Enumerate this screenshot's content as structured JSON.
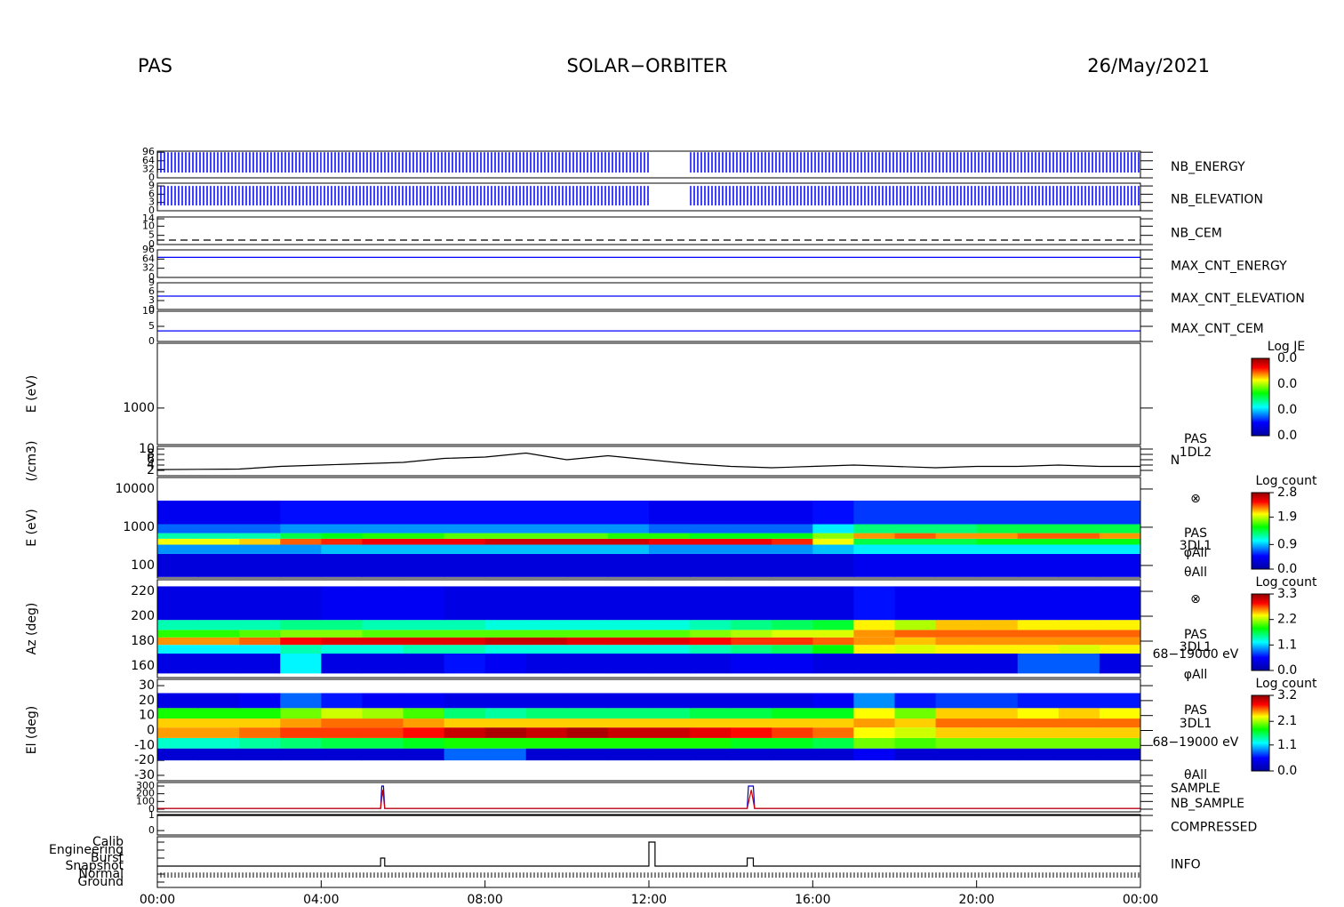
{
  "header": {
    "left": "PAS",
    "center": "SOLAR−ORBITER",
    "right": "26/May/2021"
  },
  "chart_data": [
    {
      "type": "stripes",
      "label": "NB_ENERGY",
      "color": "#0000ff",
      "ylim": [
        0,
        100
      ],
      "yticks": [
        0,
        32,
        64,
        96
      ],
      "x": [
        0,
        1,
        2,
        3,
        4,
        5,
        6,
        7,
        8,
        9,
        10,
        11,
        12,
        13,
        14,
        15,
        16,
        17,
        18,
        19,
        20,
        21,
        22,
        23
      ],
      "values": [
        96,
        96,
        96,
        96,
        96,
        96,
        96,
        96,
        96,
        96,
        96,
        96,
        null,
        96,
        96,
        96,
        96,
        96,
        96,
        96,
        96,
        96,
        96,
        96
      ]
    },
    {
      "type": "stripes",
      "label": "NB_ELEVATION",
      "color": "#0000ff",
      "ylim": [
        0,
        10
      ],
      "yticks": [
        0,
        3,
        6,
        9
      ],
      "x": [
        0,
        1,
        2,
        3,
        4,
        5,
        6,
        7,
        8,
        9,
        10,
        11,
        12,
        13,
        14,
        15,
        16,
        17,
        18,
        19,
        20,
        21,
        22,
        23
      ],
      "values": [
        9,
        9,
        9,
        9,
        9,
        9,
        9,
        9,
        9,
        9,
        9,
        9,
        null,
        9,
        9,
        9,
        9,
        9,
        9,
        9,
        9,
        9,
        9,
        9
      ]
    },
    {
      "type": "line",
      "label": "NB_CEM",
      "color": "#000000",
      "line_style": "dashed",
      "ylim": [
        0,
        15
      ],
      "yticks": [
        0,
        5,
        10,
        14
      ],
      "x": [
        0,
        24
      ],
      "values": [
        2.4,
        2.4
      ]
    },
    {
      "type": "line",
      "label": "MAX_CNT_ENERGY",
      "color": "#0000ff",
      "ylim": [
        0,
        96
      ],
      "yticks": [
        0,
        32,
        64,
        96
      ],
      "x": [
        0,
        24
      ],
      "values": [
        70,
        70
      ]
    },
    {
      "type": "line",
      "label": "MAX_CNT_ELEVATION",
      "color": "#0000ff",
      "ylim": [
        0,
        9
      ],
      "yticks": [
        0,
        3,
        6,
        9
      ],
      "x": [
        0,
        24
      ],
      "values": [
        4.5,
        4.5
      ]
    },
    {
      "type": "line",
      "label": "MAX_CNT_CEM",
      "color": "#0000ff",
      "ylim": [
        0,
        10
      ],
      "yticks": [
        0,
        5,
        10
      ],
      "x": [
        0,
        24
      ],
      "values": [
        3.5,
        3.5
      ]
    },
    {
      "type": "heatmap",
      "ylabel": "E (eV)",
      "log": true,
      "ylim": [
        110,
        50000
      ],
      "yticks": [
        1000
      ],
      "colorbar_title": "Log JE",
      "colorbar_labels": [
        "0.0",
        "0.0",
        "0.0",
        "0.0"
      ]
    },
    {
      "type": "line",
      "ylabel": "(/cm3)",
      "color": "#000000",
      "ylim": [
        0,
        11
      ],
      "yticks": [
        2,
        4,
        6,
        8,
        10
      ],
      "annotations": [
        "PAS",
        "1DL2",
        "N"
      ],
      "x": [
        0,
        1,
        2,
        3,
        4,
        5,
        6,
        7,
        8,
        9,
        10,
        11,
        12,
        13,
        14,
        15,
        16,
        17,
        18,
        19,
        20,
        21,
        22,
        23,
        24
      ],
      "values": [
        2.3,
        2.4,
        2.5,
        3.5,
        4,
        4.5,
        5,
        6.5,
        7,
        8.5,
        6,
        7.5,
        6,
        4.5,
        3.5,
        3,
        3.5,
        4,
        3.5,
        3,
        3.5,
        3.5,
        4,
        3.5,
        3.5
      ]
    },
    {
      "type": "heatmap",
      "ylabel": "E (eV)",
      "log": true,
      "ylim": [
        47,
        20000
      ],
      "yticks": [
        100,
        1000,
        10000
      ],
      "annotations": [
        "⊗",
        "PAS",
        "3DL1",
        "φAll",
        "θAll"
      ],
      "colorbar_title": "Log count",
      "clim": [
        0,
        2.8
      ],
      "zero_color": "#ffffff",
      "cticks": [
        {
          "value": 0,
          "label": "0.0"
        },
        0.9,
        1.9,
        2.8
      ],
      "xbins": [
        0,
        1,
        2,
        3,
        4,
        5,
        6,
        7,
        8,
        9,
        10,
        11,
        12,
        13,
        14,
        15,
        16,
        17,
        18,
        19,
        20,
        21,
        22,
        23,
        24
      ],
      "ybins": [
        50,
        200,
        350,
        500,
        700,
        1200,
        5000,
        20000
      ],
      "values": [
        [
          0.3,
          0.3,
          0.3,
          0.3,
          0.3,
          0.3,
          0.3,
          0.3,
          0.3,
          0.3,
          0.3,
          0.3,
          0.3,
          0.3,
          0.3,
          0.3,
          0.3,
          0.4,
          0.4,
          0.4,
          0.4,
          0.4,
          0.4,
          0.4
        ],
        [
          0.8,
          0.8,
          0.8,
          0.8,
          0.9,
          0.9,
          0.9,
          0.9,
          0.9,
          0.9,
          0.9,
          0.9,
          0.8,
          0.8,
          0.8,
          0.8,
          0.9,
          1.0,
          1.0,
          1.0,
          1.0,
          1.0,
          1.0,
          1.0
        ],
        [
          2.0,
          2.0,
          2.1,
          2.3,
          2.4,
          2.5,
          2.5,
          2.5,
          2.6,
          2.6,
          2.6,
          2.6,
          2.5,
          2.5,
          2.5,
          2.4,
          2.0,
          1.4,
          1.4,
          1.4,
          1.5,
          1.5,
          1.5,
          1.5
        ],
        [
          1.2,
          1.2,
          1.2,
          1.4,
          1.5,
          1.6,
          1.6,
          1.7,
          1.7,
          1.7,
          1.7,
          1.6,
          1.6,
          1.5,
          1.5,
          1.5,
          1.8,
          2.2,
          2.3,
          2.2,
          2.2,
          2.3,
          2.3,
          2.2
        ],
        [
          0.7,
          0.7,
          0.7,
          0.8,
          0.8,
          0.8,
          0.8,
          0.8,
          0.8,
          0.8,
          0.8,
          0.8,
          0.7,
          0.7,
          0.7,
          0.7,
          1.0,
          1.3,
          1.3,
          1.3,
          1.4,
          1.4,
          1.4,
          1.4
        ],
        [
          0.4,
          0.4,
          0.4,
          0.5,
          0.5,
          0.5,
          0.5,
          0.5,
          0.5,
          0.5,
          0.5,
          0.5,
          0.4,
          0.4,
          0.4,
          0.4,
          0.5,
          0.6,
          0.6,
          0.6,
          0.6,
          0.6,
          0.6,
          0.6
        ],
        [
          0,
          0,
          0,
          0,
          0,
          0,
          0,
          0,
          0,
          0,
          0,
          0,
          0,
          0,
          0,
          0,
          0,
          0,
          0,
          0,
          0,
          0,
          0,
          0
        ]
      ]
    },
    {
      "type": "heatmap",
      "ylabel": "Az (deg)",
      "ylim": [
        150.7,
        229.3
      ],
      "yticks": [
        160,
        180,
        200,
        220
      ],
      "annotations": [
        "⊗",
        "PAS",
        "3DL1",
        "68−19000 eV",
        "φAll"
      ],
      "colorbar_title": "Log count",
      "clim": [
        0,
        3.3
      ],
      "cticks": [
        {
          "value": 0,
          "label": "0.0"
        },
        1.1,
        2.2,
        3.3
      ],
      "xbins": [
        0,
        1,
        2,
        3,
        4,
        5,
        6,
        7,
        8,
        9,
        10,
        11,
        12,
        13,
        14,
        15,
        16,
        17,
        18,
        19,
        20,
        21,
        22,
        23,
        24
      ],
      "ybins": [
        154,
        170,
        177,
        183,
        189,
        197,
        224
      ],
      "values": [
        [
          0.4,
          0.4,
          0.4,
          1.2,
          0.4,
          0.4,
          0.4,
          0.6,
          0.5,
          0.4,
          0.4,
          0.4,
          0.4,
          0.4,
          0.5,
          0.5,
          0.4,
          0.4,
          0.4,
          0.4,
          0.4,
          0.8,
          0.8,
          0.4
        ],
        [
          1.2,
          1.2,
          1.2,
          1.4,
          1.3,
          1.3,
          1.4,
          1.4,
          1.3,
          1.3,
          1.3,
          1.3,
          1.3,
          1.4,
          1.5,
          1.6,
          1.8,
          2.4,
          2.3,
          2.4,
          2.4,
          2.4,
          2.3,
          2.4
        ],
        [
          2.6,
          2.6,
          2.7,
          2.9,
          3.0,
          3.0,
          3.0,
          3.0,
          3.1,
          3.1,
          3.0,
          3.0,
          3.0,
          2.9,
          2.8,
          2.8,
          2.7,
          2.6,
          2.5,
          2.6,
          2.6,
          2.6,
          2.6,
          2.6
        ],
        [
          1.9,
          1.9,
          2.0,
          2.1,
          2.1,
          2.0,
          2.0,
          2.0,
          2.0,
          2.0,
          2.0,
          2.0,
          2.0,
          2.1,
          2.2,
          2.3,
          2.3,
          2.6,
          2.7,
          2.7,
          2.7,
          2.7,
          2.7,
          2.7
        ],
        [
          1.4,
          1.4,
          1.4,
          1.5,
          1.5,
          1.4,
          1.4,
          1.4,
          1.3,
          1.3,
          1.3,
          1.3,
          1.3,
          1.4,
          1.5,
          1.6,
          1.7,
          2.4,
          2.2,
          2.5,
          2.5,
          2.4,
          2.4,
          2.4
        ],
        [
          0.4,
          0.4,
          0.4,
          0.4,
          0.5,
          0.5,
          0.5,
          0.4,
          0.4,
          0.4,
          0.4,
          0.4,
          0.4,
          0.4,
          0.4,
          0.4,
          0.4,
          0.6,
          0.5,
          0.5,
          0.5,
          0.5,
          0.5,
          0.5
        ]
      ]
    },
    {
      "type": "heatmap",
      "ylabel": "El (deg)",
      "ylim": [
        -33.6,
        34.2
      ],
      "yticks": [
        -30,
        -20,
        -10,
        0,
        10,
        20,
        30
      ],
      "annotations": [
        "PAS",
        "3DL1",
        "68−19000 eV",
        "θAll"
      ],
      "colorbar_title": "Log count",
      "clim": [
        0,
        3.2
      ],
      "cticks": [
        {
          "value": 0,
          "label": "0.0"
        },
        1.1,
        2.1,
        3.2
      ],
      "xbins": [
        0,
        1,
        2,
        3,
        4,
        5,
        6,
        7,
        8,
        9,
        10,
        11,
        12,
        13,
        14,
        15,
        16,
        17,
        18,
        19,
        20,
        21,
        22,
        23,
        24
      ],
      "ybins": [
        -20,
        -12,
        -5,
        2,
        8,
        15,
        25
      ],
      "values": [
        [
          0.3,
          0.3,
          0.3,
          0.3,
          0.3,
          0.3,
          0.3,
          0.8,
          0.8,
          0.3,
          0.3,
          0.3,
          0.3,
          0.3,
          0.3,
          0.3,
          0.3,
          0.5,
          0.3,
          0.3,
          0.3,
          0.3,
          0.3,
          0.3
        ],
        [
          1.3,
          1.3,
          1.4,
          1.5,
          1.6,
          1.6,
          1.7,
          1.8,
          1.8,
          1.8,
          1.8,
          1.8,
          1.8,
          1.8,
          1.7,
          1.7,
          1.6,
          2.0,
          1.9,
          2.0,
          2.0,
          2.0,
          2.0,
          2.0
        ],
        [
          2.5,
          2.5,
          2.6,
          2.7,
          2.7,
          2.7,
          2.8,
          3.0,
          3.1,
          3.0,
          3.1,
          3.0,
          3.0,
          2.9,
          2.8,
          2.7,
          2.6,
          2.3,
          2.2,
          2.4,
          2.4,
          2.4,
          2.4,
          2.4
        ],
        [
          2.4,
          2.4,
          2.4,
          2.5,
          2.6,
          2.6,
          2.5,
          2.4,
          2.4,
          2.4,
          2.4,
          2.4,
          2.4,
          2.4,
          2.4,
          2.4,
          2.4,
          2.5,
          2.4,
          2.6,
          2.6,
          2.6,
          2.6,
          2.6
        ],
        [
          1.8,
          1.8,
          1.8,
          2.0,
          2.2,
          2.1,
          1.9,
          1.5,
          1.4,
          1.5,
          1.5,
          1.5,
          1.5,
          1.6,
          1.6,
          1.7,
          1.7,
          2.3,
          2.0,
          2.4,
          2.4,
          2.3,
          2.4,
          2.3
        ],
        [
          0.4,
          0.4,
          0.5,
          0.8,
          0.6,
          0.5,
          0.5,
          0.4,
          0.4,
          0.4,
          0.4,
          0.4,
          0.4,
          0.4,
          0.4,
          0.4,
          0.5,
          0.9,
          0.6,
          0.7,
          0.7,
          0.6,
          0.6,
          0.6
        ]
      ]
    },
    {
      "type": "line",
      "ylim": [
        -35,
        346
      ],
      "yticks": [
        0,
        100,
        200,
        300
      ],
      "series": [
        {
          "name": "SAMPLE",
          "color": "#0000cc",
          "x": [
            0,
            5.45,
            5.48,
            5.52,
            5.55,
            14.4,
            14.43,
            14.55,
            14.58,
            24
          ],
          "values": [
            10,
            10,
            300,
            300,
            10,
            10,
            300,
            300,
            10,
            10
          ]
        },
        {
          "name": "NB_SAMPLE",
          "color": "#cc0000",
          "x": [
            0,
            5.45,
            5.5,
            5.55,
            14.4,
            14.5,
            14.58,
            24
          ],
          "values": [
            10,
            10,
            250,
            10,
            10,
            250,
            10,
            10
          ]
        }
      ]
    },
    {
      "type": "line",
      "label": "COMPRESSED",
      "color": "#000000",
      "ylim": [
        -0.29,
        1.06
      ],
      "yticks": [
        0,
        1
      ],
      "x": [
        0,
        24
      ],
      "values": [
        1,
        1
      ]
    },
    {
      "type": "step",
      "label": "INFO",
      "color": "#000000",
      "ylim": [
        -0.67,
        5.67
      ],
      "categories": [
        "Ground",
        "Normal",
        "Snapshot",
        "Burst",
        "Engineering",
        "Calib"
      ],
      "x": [
        0,
        5.45,
        5.45,
        5.55,
        5.55,
        12,
        12,
        12.15,
        12.15,
        14.4,
        14.4,
        14.55,
        14.55,
        24
      ],
      "values": [
        2,
        2,
        3,
        3,
        2,
        2,
        5,
        5,
        2,
        2,
        3,
        3,
        2,
        2
      ],
      "xlim": [
        0,
        24
      ],
      "xticks": [
        {
          "value": 0,
          "label": "00:00"
        },
        {
          "value": 4,
          "label": "04:00"
        },
        {
          "value": 8,
          "label": "08:00"
        },
        {
          "value": 12,
          "label": "12:00"
        },
        {
          "value": 16,
          "label": "16:00"
        },
        {
          "value": 20,
          "label": "20:00"
        },
        {
          "value": 24,
          "label": "00:00"
        }
      ]
    }
  ]
}
